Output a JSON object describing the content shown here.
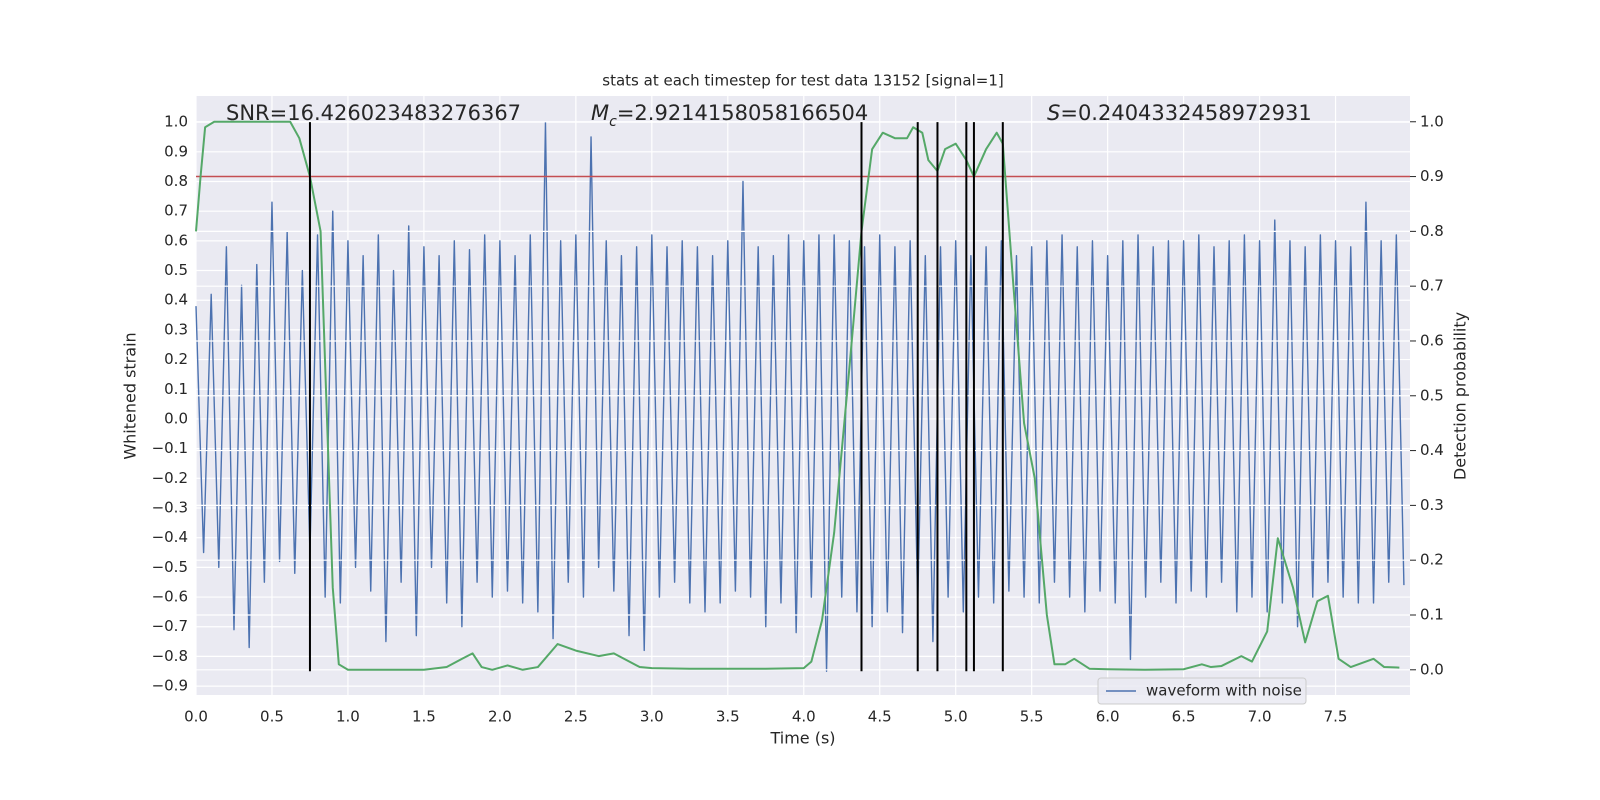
{
  "chart_data": {
    "type": "line",
    "title": "stats at each timestep for test data 13152 [signal=1]",
    "xlabel": "Time (s)",
    "ylabel": "Whitened strain",
    "y2label": "Detection probability",
    "grid": true,
    "legend": "lower right",
    "xlim": [
      0,
      7.99
    ],
    "ylim": [
      -0.93,
      1.088
    ],
    "y2lim": [
      -0.046,
      1.047
    ],
    "xticks": [
      {
        "value": 0,
        "label": "0.0"
      },
      {
        "value": 0.5,
        "label": "0.5"
      },
      {
        "value": 1,
        "label": "1.0"
      },
      {
        "value": 1.5,
        "label": "1.5"
      },
      {
        "value": 2,
        "label": "2.0"
      },
      {
        "value": 2.5,
        "label": "2.5"
      },
      {
        "value": 3,
        "label": "3.0"
      },
      {
        "value": 3.5,
        "label": "3.5"
      },
      {
        "value": 4,
        "label": "4.0"
      },
      {
        "value": 4.5,
        "label": "4.5"
      },
      {
        "value": 5,
        "label": "5.0"
      },
      {
        "value": 5.5,
        "label": "5.5"
      },
      {
        "value": 6,
        "label": "6.0"
      },
      {
        "value": 6.5,
        "label": "6.5"
      },
      {
        "value": 7,
        "label": "7.0"
      },
      {
        "value": 7.5,
        "label": "7.5"
      }
    ],
    "yticks": [
      {
        "value": 1,
        "label": "1.0"
      },
      {
        "value": 0.9,
        "label": "0.9"
      },
      {
        "value": 0.8,
        "label": "0.8"
      },
      {
        "value": 0.7,
        "label": "0.7"
      },
      {
        "value": 0.6,
        "label": "0.6"
      },
      {
        "value": 0.5,
        "label": "0.5"
      },
      {
        "value": 0.4,
        "label": "0.4"
      },
      {
        "value": 0.3,
        "label": "0.3"
      },
      {
        "value": 0.2,
        "label": "0.2"
      },
      {
        "value": 0.1,
        "label": "0.1"
      },
      {
        "value": 0,
        "label": "0.0"
      },
      {
        "value": -0.1,
        "label": "−0.1"
      },
      {
        "value": -0.2,
        "label": "−0.2"
      },
      {
        "value": -0.3,
        "label": "−0.3"
      },
      {
        "value": -0.4,
        "label": "−0.4"
      },
      {
        "value": -0.5,
        "label": "−0.5"
      },
      {
        "value": -0.6,
        "label": "−0.6"
      },
      {
        "value": -0.7,
        "label": "−0.7"
      },
      {
        "value": -0.8,
        "label": "−0.8"
      },
      {
        "value": -0.9,
        "label": "−0.9"
      }
    ],
    "y2ticks": [
      {
        "value": 0,
        "label": "0.0"
      },
      {
        "value": 0.1,
        "label": "0.1"
      },
      {
        "value": 0.2,
        "label": "0.2"
      },
      {
        "value": 0.3,
        "label": "0.3"
      },
      {
        "value": 0.4,
        "label": "0.4"
      },
      {
        "value": 0.5,
        "label": "0.5"
      },
      {
        "value": 0.6,
        "label": "0.6"
      },
      {
        "value": 0.7,
        "label": "0.7"
      },
      {
        "value": 0.8,
        "label": "0.8"
      },
      {
        "value": 0.9,
        "label": "0.9"
      },
      {
        "value": 1,
        "label": "1.0"
      }
    ],
    "series": [
      {
        "name": "waveform with noise",
        "color": "#4c72b0",
        "x": [
          0,
          0.05,
          0.1,
          0.15,
          0.2,
          0.25,
          0.3,
          0.35,
          0.4,
          0.45,
          0.5,
          0.55,
          0.6,
          0.65,
          0.7,
          0.75,
          0.8,
          0.85,
          0.9,
          0.95,
          1,
          1.05,
          1.1,
          1.15,
          1.2,
          1.25,
          1.3,
          1.35,
          1.4,
          1.45,
          1.5,
          1.55,
          1.6,
          1.65,
          1.7,
          1.75,
          1.8,
          1.85,
          1.9,
          1.95,
          2,
          2.05,
          2.1,
          2.15,
          2.2,
          2.25,
          2.3,
          2.35,
          2.4,
          2.45,
          2.5,
          2.55,
          2.6,
          2.65,
          2.7,
          2.75,
          2.8,
          2.85,
          2.9,
          2.95,
          3,
          3.05,
          3.1,
          3.15,
          3.2,
          3.25,
          3.3,
          3.35,
          3.4,
          3.45,
          3.5,
          3.55,
          3.6,
          3.65,
          3.7,
          3.75,
          3.8,
          3.85,
          3.9,
          3.95,
          4,
          4.05,
          4.1,
          4.15,
          4.2,
          4.25,
          4.3,
          4.35,
          4.4,
          4.45,
          4.5,
          4.55,
          4.6,
          4.65,
          4.7,
          4.75,
          4.8,
          4.85,
          4.9,
          4.95,
          5,
          5.05,
          5.1,
          5.15,
          5.2,
          5.25,
          5.3,
          5.35,
          5.4,
          5.45,
          5.5,
          5.55,
          5.6,
          5.65,
          5.7,
          5.75,
          5.8,
          5.85,
          5.9,
          5.95,
          6,
          6.05,
          6.1,
          6.15,
          6.2,
          6.25,
          6.3,
          6.35,
          6.4,
          6.45,
          6.5,
          6.55,
          6.6,
          6.65,
          6.7,
          6.75,
          6.8,
          6.85,
          6.9,
          6.95,
          7,
          7.05,
          7.1,
          7.15,
          7.2,
          7.25,
          7.3,
          7.35,
          7.4,
          7.45,
          7.5,
          7.55,
          7.6,
          7.65,
          7.7,
          7.75,
          7.8,
          7.85,
          7.9,
          7.95
        ],
        "values": [
          0.38,
          -0.45,
          0.42,
          -0.5,
          0.58,
          -0.71,
          0.45,
          -0.77,
          0.52,
          -0.55,
          0.73,
          -0.48,
          0.63,
          -0.52,
          0.5,
          -0.45,
          0.62,
          -0.6,
          0.7,
          -0.62,
          0.6,
          -0.5,
          0.55,
          -0.58,
          0.62,
          -0.75,
          0.5,
          -0.55,
          0.65,
          -0.73,
          0.58,
          -0.5,
          0.55,
          -0.62,
          0.6,
          -0.7,
          0.57,
          -0.55,
          0.62,
          -0.6,
          0.6,
          -0.58,
          0.55,
          -0.62,
          0.62,
          -0.65,
          1.0,
          -0.74,
          0.6,
          -0.55,
          0.62,
          -0.6,
          0.95,
          -0.5,
          0.6,
          -0.58,
          0.55,
          -0.73,
          0.58,
          -0.78,
          0.62,
          -0.6,
          0.58,
          -0.55,
          0.6,
          -0.62,
          0.58,
          -0.65,
          0.55,
          -0.62,
          0.6,
          -0.58,
          0.8,
          -0.6,
          0.58,
          -0.7,
          0.55,
          -0.62,
          0.62,
          -0.72,
          0.6,
          -0.6,
          0.62,
          -0.85,
          0.62,
          -0.6,
          0.6,
          -0.65,
          0.58,
          -0.7,
          0.62,
          -0.65,
          0.58,
          -0.72,
          0.6,
          -0.62,
          0.55,
          -0.75,
          0.58,
          -0.6,
          0.6,
          -0.65,
          0.55,
          -0.6,
          0.58,
          -0.62,
          0.6,
          -0.58,
          0.55,
          -0.6,
          0.58,
          -0.62,
          0.6,
          -0.55,
          0.62,
          -0.6,
          0.58,
          -0.65,
          0.6,
          -0.58,
          0.55,
          -0.62,
          0.6,
          -0.81,
          0.62,
          -0.6,
          0.58,
          -0.55,
          0.6,
          -0.62,
          0.6,
          -0.58,
          0.62,
          -0.6,
          0.58,
          -0.55,
          0.6,
          -0.65,
          0.62,
          -0.6,
          0.6,
          -0.65,
          0.67,
          -0.62,
          0.6,
          -0.7,
          0.58,
          -0.6,
          0.62,
          -0.55,
          0.6,
          -0.6,
          0.58,
          -0.62,
          0.73,
          -0.62,
          0.6,
          -0.55,
          0.62,
          -0.56
        ]
      },
      {
        "color": "#55a868",
        "axis": "y2",
        "x": [
          0,
          0.03,
          0.06,
          0.12,
          0.25,
          0.4,
          0.55,
          0.62,
          0.68,
          0.75,
          0.82,
          0.9,
          0.94,
          1.0,
          1.25,
          1.5,
          1.65,
          1.75,
          1.82,
          1.88,
          1.95,
          2.05,
          2.15,
          2.25,
          2.38,
          2.5,
          2.65,
          2.75,
          2.92,
          3.0,
          3.25,
          3.5,
          3.75,
          4.0,
          4.05,
          4.12,
          4.2,
          4.3,
          4.38,
          4.45,
          4.52,
          4.6,
          4.68,
          4.72,
          4.78,
          4.82,
          4.88,
          4.93,
          5.0,
          5.07,
          5.12,
          5.2,
          5.27,
          5.31,
          5.38,
          5.45,
          5.52,
          5.6,
          5.65,
          5.72,
          5.78,
          5.88,
          6.0,
          6.25,
          6.5,
          6.62,
          6.68,
          6.75,
          6.88,
          6.95,
          7.05,
          7.12,
          7.22,
          7.3,
          7.38,
          7.45,
          7.52,
          7.6,
          7.75,
          7.82,
          7.92
        ],
        "values": [
          0.8,
          0.9,
          0.99,
          1.0,
          1.0,
          1.0,
          1.0,
          1.0,
          0.97,
          0.9,
          0.8,
          0.15,
          0.01,
          0.0,
          0.0,
          0.0,
          0.005,
          0.02,
          0.03,
          0.005,
          0.0,
          0.008,
          0.0,
          0.005,
          0.047,
          0.035,
          0.025,
          0.03,
          0.005,
          0.003,
          0.002,
          0.002,
          0.002,
          0.003,
          0.015,
          0.09,
          0.25,
          0.55,
          0.8,
          0.95,
          0.98,
          0.97,
          0.97,
          0.99,
          0.98,
          0.93,
          0.91,
          0.95,
          0.96,
          0.93,
          0.9,
          0.95,
          0.98,
          0.96,
          0.7,
          0.45,
          0.35,
          0.1,
          0.01,
          0.01,
          0.02,
          0.002,
          0.001,
          0.0,
          0.001,
          0.01,
          0.005,
          0.007,
          0.025,
          0.015,
          0.07,
          0.24,
          0.15,
          0.05,
          0.125,
          0.135,
          0.02,
          0.005,
          0.02,
          0.005,
          0.004
        ]
      }
    ],
    "vlines": {
      "x": [
        0.75,
        4.38,
        4.75,
        4.88,
        5.07,
        5.12,
        5.31
      ],
      "ymin": -0.85,
      "ymax": 1.0,
      "color": "#000000"
    },
    "hlines": [
      {
        "y": 0.9,
        "axis": "y2",
        "color": "#c44e52"
      }
    ],
    "annotations": [
      {
        "text": "SNR=16.426023483276367"
      },
      {
        "symbol": "M",
        "subscript": "c",
        "text": "=2.9214158058166504"
      },
      {
        "symbol": "S",
        "text": "=0.2404332458972931"
      }
    ]
  }
}
